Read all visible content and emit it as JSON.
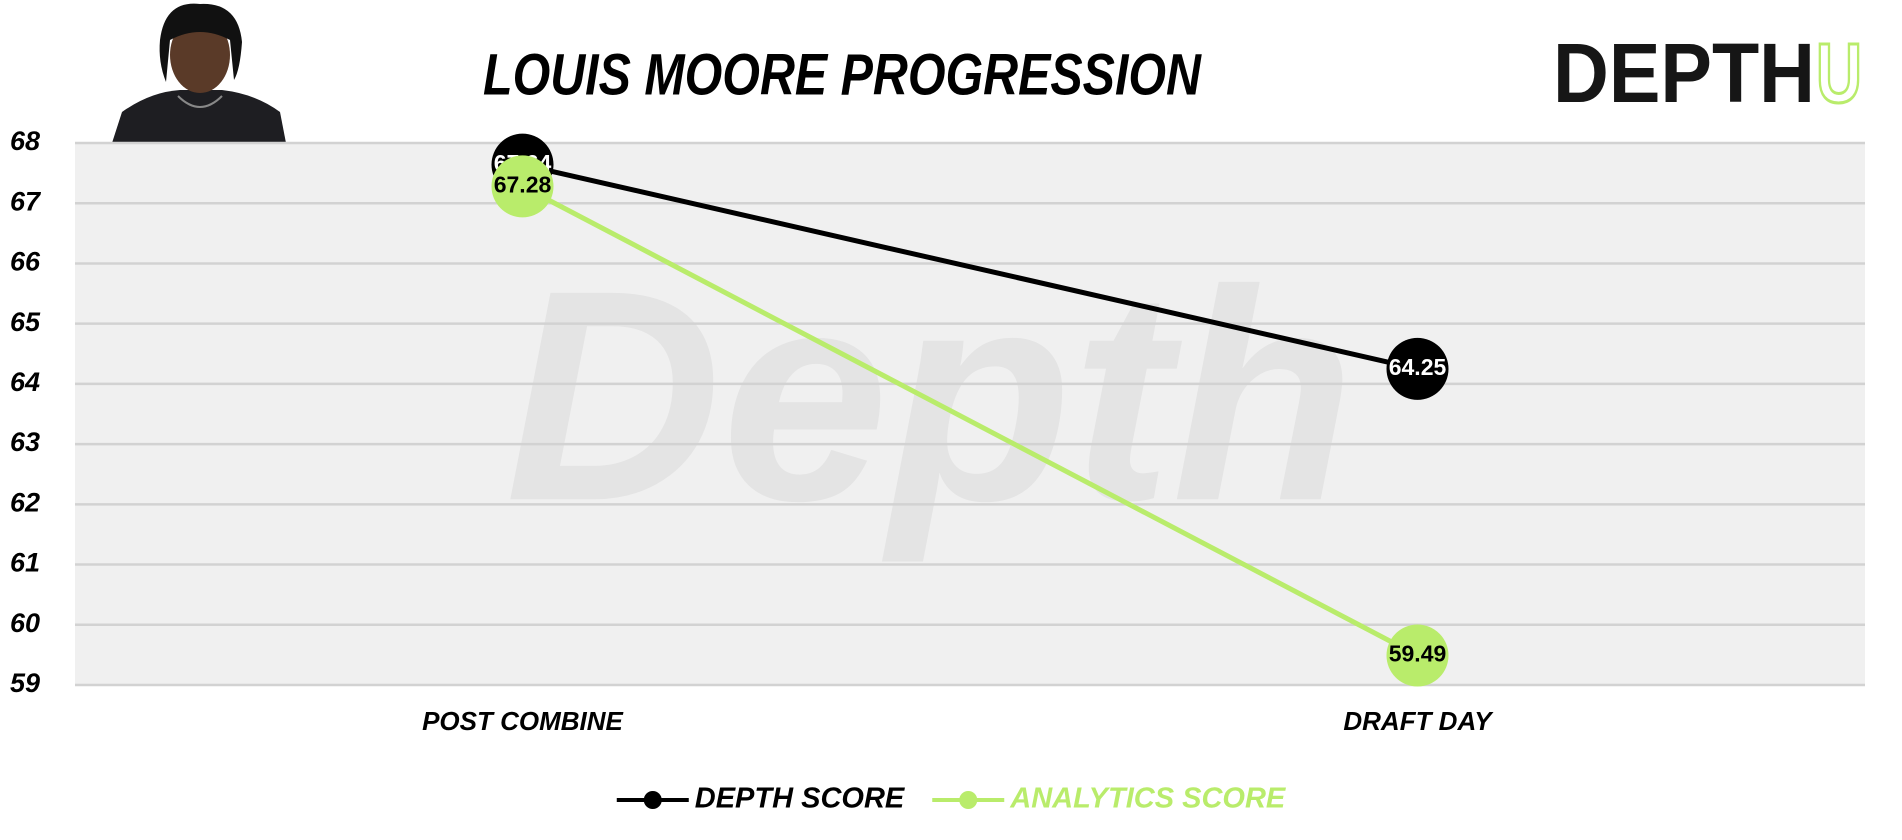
{
  "chart_data": {
    "type": "line",
    "title": "LOUIS MOORE PROGRESSION",
    "categories": [
      "POST COMBINE",
      "DRAFT DAY"
    ],
    "series": [
      {
        "name": "DEPTH SCORE",
        "color": "#000000",
        "values": [
          67.64,
          64.25
        ]
      },
      {
        "name": "ANALYTICS SCORE",
        "color": "#b9ec6b",
        "values": [
          67.28,
          59.49
        ]
      }
    ],
    "ylim": [
      59,
      68
    ],
    "yticks": [
      59,
      60,
      61,
      62,
      63,
      64,
      65,
      66,
      67,
      68
    ],
    "grid": true
  },
  "watermark": "Depth",
  "logo": {
    "text": "DEPTH",
    "accent": "U"
  }
}
